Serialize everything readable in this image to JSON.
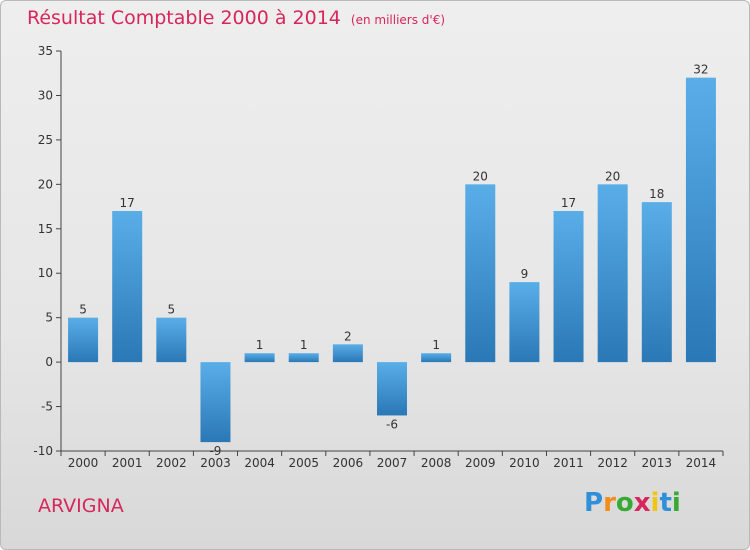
{
  "header": {
    "title": "Résultat Comptable 2000 à 2014",
    "subtitle": "(en milliers d'€)"
  },
  "footer": {
    "commune": "ARVIGNA",
    "brand": {
      "letters": [
        "P",
        "r",
        "o",
        "x",
        "i",
        "t",
        "i"
      ],
      "colors": [
        "#2f8fd8",
        "#f28c1b",
        "#39a935",
        "#d7265b",
        "#f2c511",
        "#2f8fd8",
        "#39a935"
      ]
    }
  },
  "colors": {
    "title": "#d7265b",
    "bar_light": "#5aaee8",
    "bar_dark": "#2a78b6"
  },
  "chart_data": {
    "type": "bar",
    "categories": [
      "2000",
      "2001",
      "2002",
      "2003",
      "2004",
      "2005",
      "2006",
      "2007",
      "2008",
      "2009",
      "2010",
      "2011",
      "2012",
      "2013",
      "2014"
    ],
    "values": [
      5,
      17,
      5,
      -9,
      1,
      1,
      2,
      -6,
      1,
      20,
      9,
      17,
      20,
      18,
      32
    ],
    "ylim": [
      -10,
      35
    ],
    "yticks": [
      -10,
      -5,
      0,
      5,
      10,
      15,
      20,
      25,
      30,
      35
    ],
    "grid": false
  }
}
